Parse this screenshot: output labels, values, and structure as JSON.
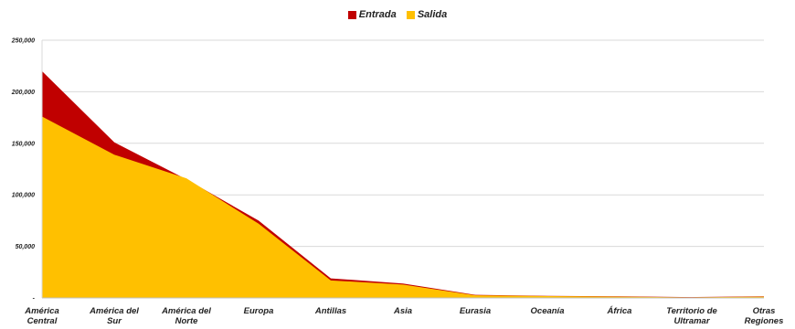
{
  "chart_data": {
    "type": "area",
    "title": "",
    "xlabel": "",
    "ylabel": "",
    "ylim": [
      0,
      250000
    ],
    "grid": true,
    "legend_position": "top-center",
    "y_ticks": [
      "-",
      "50,000",
      "100,000",
      "150,000",
      "200,000",
      "250,000"
    ],
    "categories": [
      [
        "América",
        "Central"
      ],
      [
        "América del",
        "Sur"
      ],
      [
        "América del",
        "Norte"
      ],
      [
        "Europa"
      ],
      [
        "Antillas"
      ],
      [
        "Asia"
      ],
      [
        "Eurasia"
      ],
      [
        "Oceanía"
      ],
      [
        "África"
      ],
      [
        "Territorio de",
        "Ultramar"
      ],
      [
        "Otras",
        "Regiones"
      ]
    ],
    "series": [
      {
        "name": "Entrada",
        "color": "#c00000",
        "values": [
          220000,
          151000,
          115000,
          75000,
          19000,
          14000,
          3000,
          2000,
          1500,
          800,
          1500
        ]
      },
      {
        "name": "Salida",
        "color": "#ffc000",
        "values": [
          176000,
          139000,
          116000,
          72000,
          17000,
          13000,
          2500,
          1800,
          1200,
          600,
          1200
        ]
      }
    ]
  }
}
